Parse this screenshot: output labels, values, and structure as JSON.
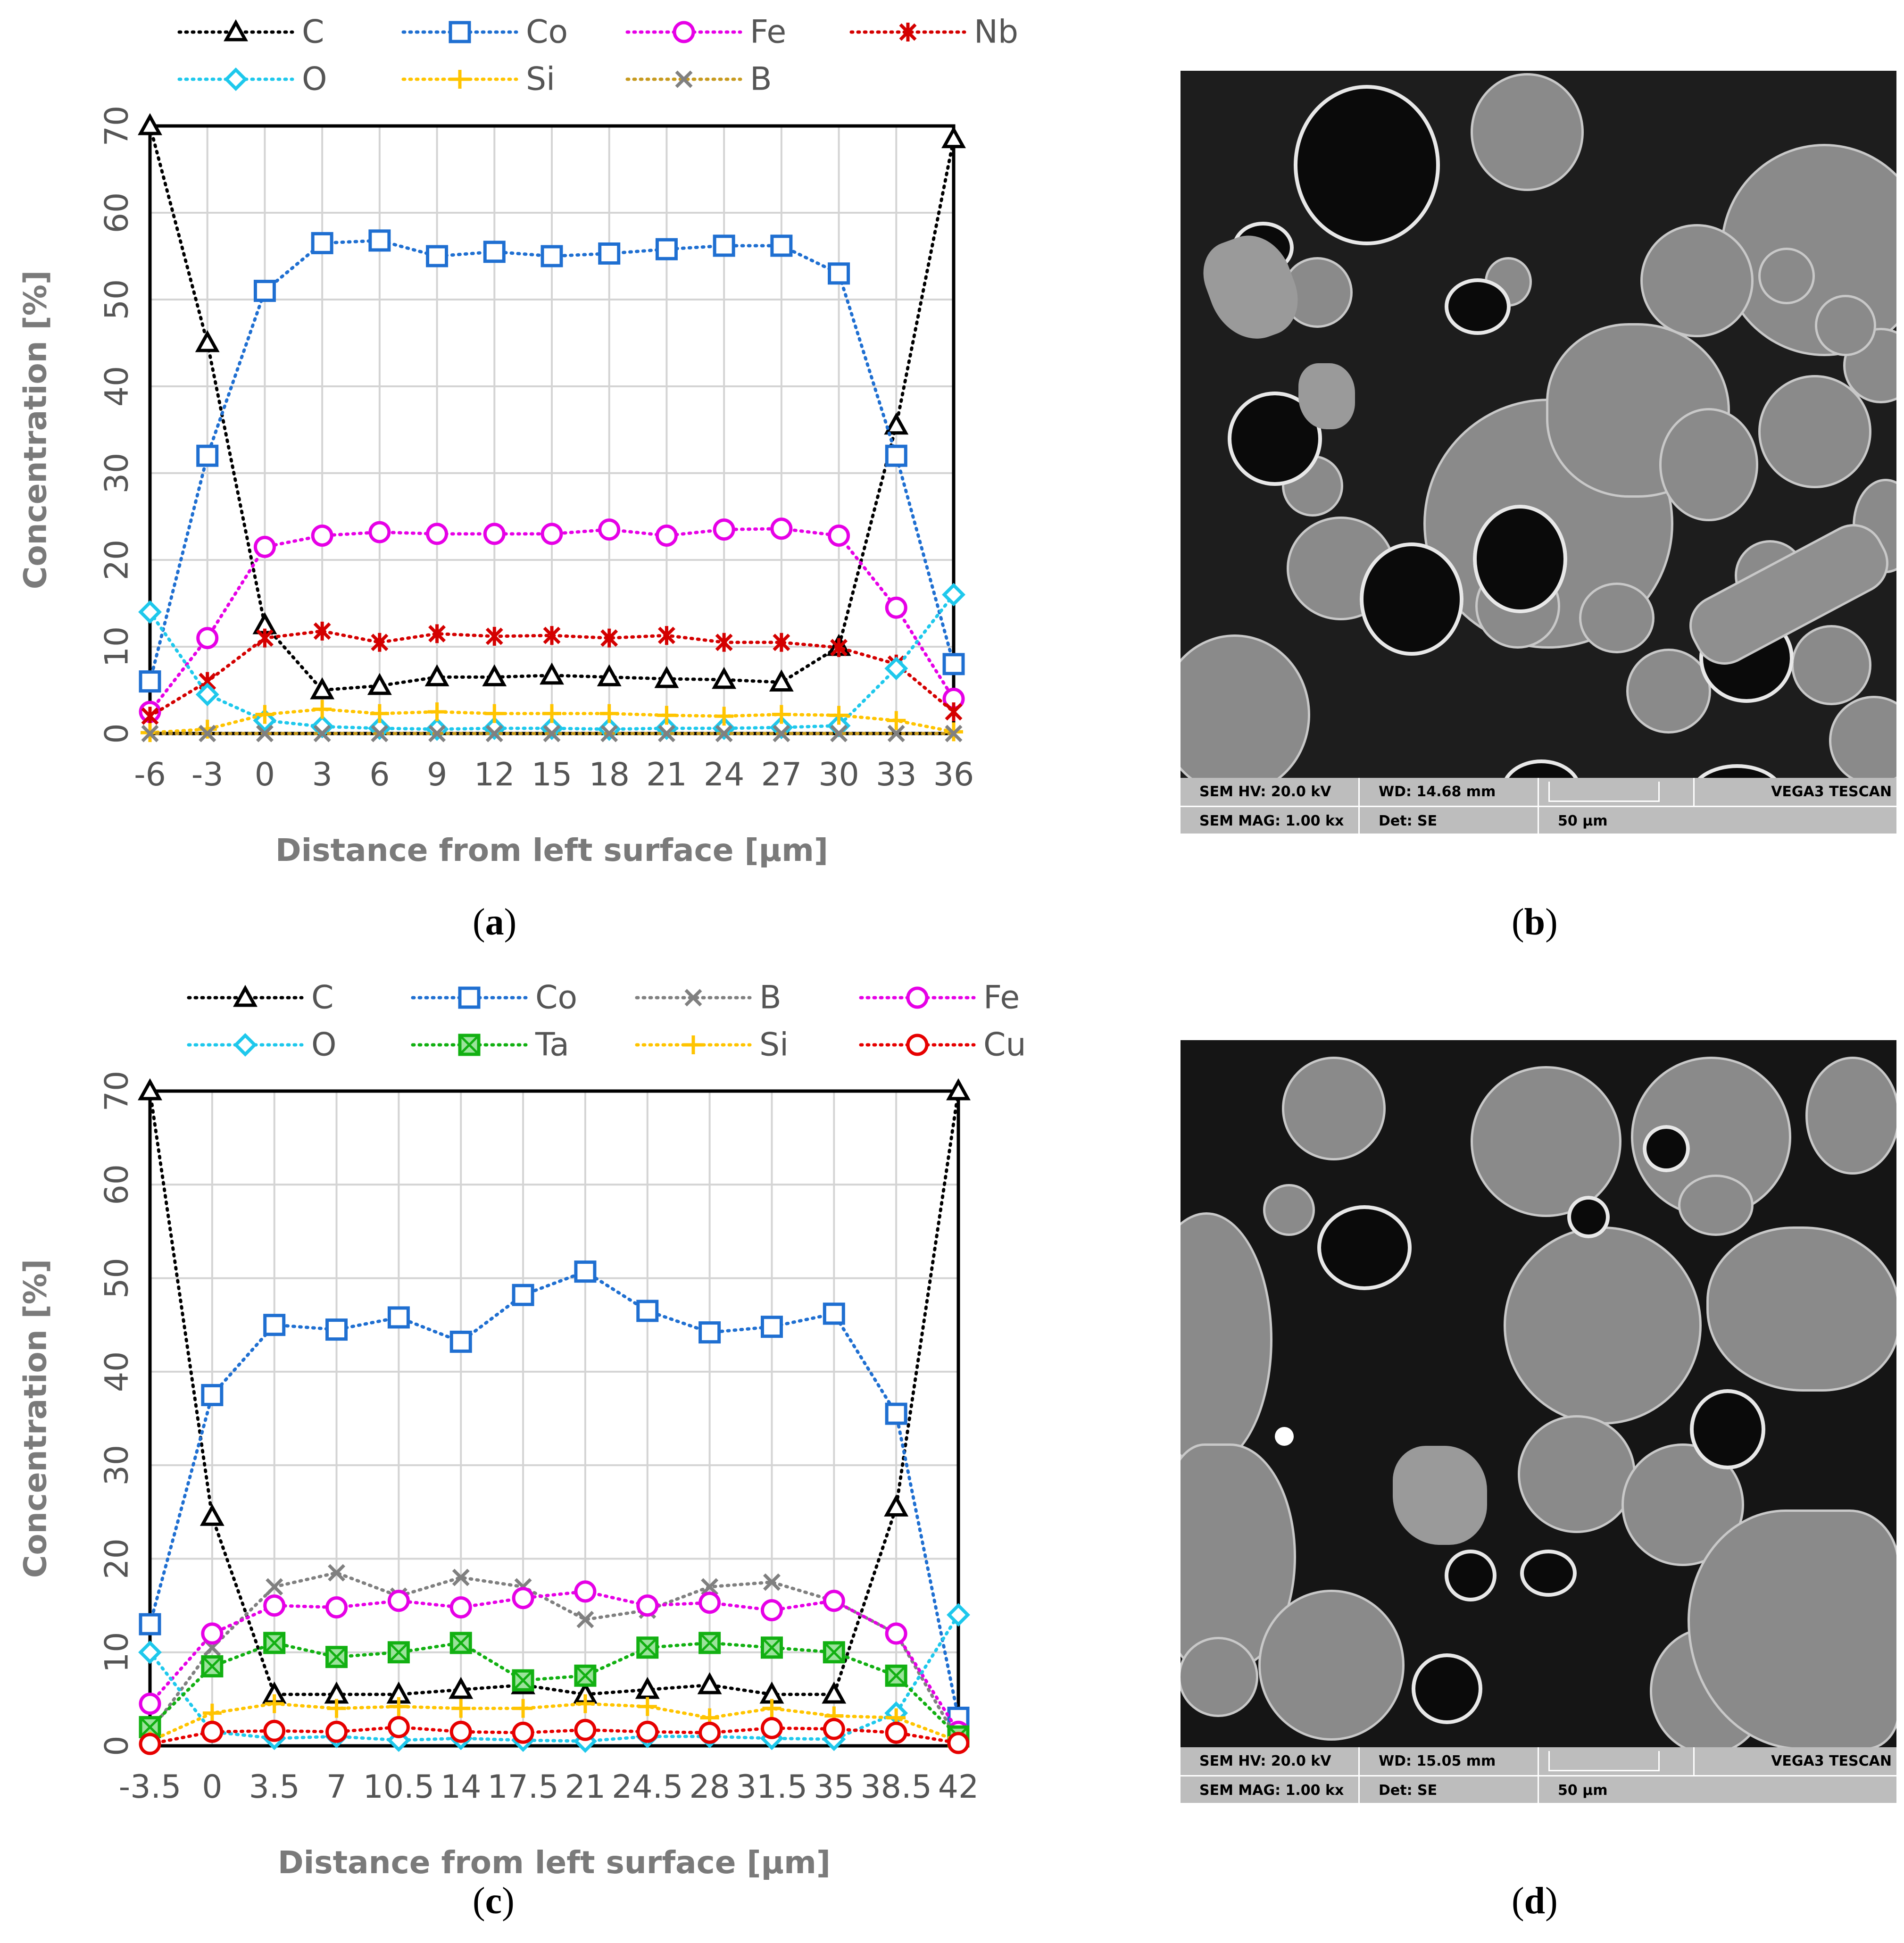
{
  "panels": [
    {
      "id": "a",
      "label_open": "(",
      "letter": "a",
      "label_close": ")"
    },
    {
      "id": "b",
      "label_open": "(",
      "letter": "b",
      "label_close": ")"
    },
    {
      "id": "c",
      "label_open": "(",
      "letter": "c",
      "label_close": ")"
    },
    {
      "id": "d",
      "label_open": "(",
      "letter": "d",
      "label_close": ")"
    }
  ],
  "chart_data": [
    {
      "id": "a",
      "type": "line",
      "xlabel": "Distance from left surface [µm]",
      "ylabel": "Concentration [%]",
      "ylim": [
        0,
        70
      ],
      "yticks": [
        0,
        10,
        20,
        30,
        40,
        50,
        60,
        70
      ],
      "categories": [
        "-6",
        "-3",
        "0",
        "3",
        "6",
        "9",
        "12",
        "15",
        "18",
        "21",
        "24",
        "27",
        "30",
        "33",
        "36"
      ],
      "grid": true,
      "legend_position": "top",
      "series": [
        {
          "name": "C",
          "color": "#000000",
          "marker": "triangle",
          "values": [
            70,
            45,
            12.5,
            5,
            5.5,
            6.5,
            6.5,
            6.7,
            6.5,
            6.3,
            6.2,
            5.9,
            10,
            35.5,
            68.5
          ]
        },
        {
          "name": "Co",
          "color": "#1f6fd1",
          "marker": "square",
          "values": [
            6,
            32,
            51,
            56.5,
            56.8,
            55,
            55.5,
            55,
            55.3,
            55.8,
            56.2,
            56.2,
            53,
            32,
            8
          ]
        },
        {
          "name": "Fe",
          "color": "#e600e6",
          "marker": "circle",
          "values": [
            2.5,
            11,
            21.5,
            22.8,
            23.2,
            23,
            23,
            23,
            23.5,
            22.8,
            23.5,
            23.6,
            22.8,
            14.5,
            4
          ]
        },
        {
          "name": "Nb",
          "color": "#d40000",
          "marker": "star",
          "values": [
            2,
            6,
            11,
            11.8,
            10.5,
            11.5,
            11.2,
            11.3,
            11,
            11.3,
            10.5,
            10.5,
            9.9,
            8,
            2.5
          ]
        },
        {
          "name": "O",
          "color": "#1ec8ec",
          "marker": "diamond",
          "values": [
            14,
            4.5,
            1.5,
            0.8,
            0.6,
            0.5,
            0.6,
            0.6,
            0.5,
            0.6,
            0.6,
            0.7,
            0.9,
            7.5,
            16
          ]
        },
        {
          "name": "Si",
          "color": "#ffc400",
          "marker": "plus",
          "values": [
            0.1,
            0.5,
            2.2,
            2.8,
            2.3,
            2.5,
            2.3,
            2.3,
            2.3,
            2.1,
            2,
            2.2,
            2.1,
            1.5,
            0.2
          ]
        },
        {
          "name": "B",
          "color": "#808080",
          "marker": "x",
          "line_color": "#c79a1e",
          "values": [
            0,
            0,
            0,
            0,
            0,
            0,
            0,
            0,
            0,
            0,
            0,
            0,
            0,
            0,
            0
          ]
        }
      ]
    },
    {
      "id": "c",
      "type": "line",
      "xlabel": "Distance from left surface [µm]",
      "ylabel": "Concentration  [%]",
      "ylim": [
        0,
        70
      ],
      "yticks": [
        0,
        10,
        20,
        30,
        40,
        50,
        60,
        70
      ],
      "categories": [
        "-3.5",
        "0",
        "3.5",
        "7",
        "10.5",
        "14",
        "17.5",
        "21",
        "24.5",
        "28",
        "31.5",
        "35",
        "38.5",
        "42"
      ],
      "grid": true,
      "legend_position": "top",
      "series": [
        {
          "name": "C",
          "color": "#000000",
          "marker": "triangle",
          "values": [
            70,
            24.5,
            5.5,
            5.5,
            5.5,
            6,
            6.5,
            5.5,
            6,
            6.5,
            5.5,
            5.5,
            25.5,
            70
          ]
        },
        {
          "name": "Co",
          "color": "#1f6fd1",
          "marker": "square",
          "values": [
            13,
            37.5,
            45,
            44.5,
            45.8,
            43.2,
            48.2,
            50.7,
            46.5,
            44.2,
            44.8,
            46.2,
            35.5,
            3
          ]
        },
        {
          "name": "B",
          "color": "#808080",
          "marker": "x",
          "values": [
            1.5,
            10.5,
            17,
            18.5,
            16,
            18,
            17,
            13.5,
            14.5,
            17,
            17.5,
            15.5,
            12,
            0.5
          ]
        },
        {
          "name": "Fe",
          "color": "#e600e6",
          "marker": "circle",
          "values": [
            4.5,
            12,
            15,
            14.8,
            15.5,
            14.8,
            15.8,
            16.5,
            15,
            15.3,
            14.5,
            15.5,
            12,
            1.5
          ]
        },
        {
          "name": "O",
          "color": "#1ec8ec",
          "marker": "diamond",
          "values": [
            10,
            1.5,
            0.8,
            1,
            0.6,
            0.8,
            0.6,
            0.5,
            1,
            1,
            0.8,
            0.7,
            3.5,
            14
          ]
        },
        {
          "name": "Ta",
          "color": "#12b012",
          "marker": "boxx",
          "values": [
            2,
            8.5,
            11,
            9.5,
            10,
            11,
            7,
            7.5,
            10.5,
            11,
            10.5,
            10,
            7.5,
            1
          ]
        },
        {
          "name": "Si",
          "color": "#ffc400",
          "marker": "plus",
          "values": [
            0.5,
            3.5,
            4.5,
            4,
            4.2,
            4,
            4,
            4.5,
            4.2,
            3,
            4,
            3.2,
            3,
            0.5
          ]
        },
        {
          "name": "Cu",
          "color": "#e60000",
          "marker": "circle",
          "values": [
            0.2,
            1.5,
            1.6,
            1.5,
            2,
            1.5,
            1.4,
            1.7,
            1.5,
            1.4,
            1.9,
            1.8,
            1.4,
            0.3
          ]
        }
      ]
    }
  ],
  "sem_b": {
    "hv": "SEM HV: 20.0 kV",
    "wd": "WD: 14.68 mm",
    "brand": "VEGA3 TESCAN",
    "mag": "SEM MAG: 1.00 kx",
    "det": "Det: SE",
    "scale": "50 µm"
  },
  "sem_d": {
    "hv": "SEM HV: 20.0 kV",
    "wd": "WD: 15.05 mm",
    "brand": "VEGA3 TESCAN",
    "mag": "SEM MAG: 1.00 kx",
    "det": "Det: SE",
    "scale": "50 µm"
  }
}
